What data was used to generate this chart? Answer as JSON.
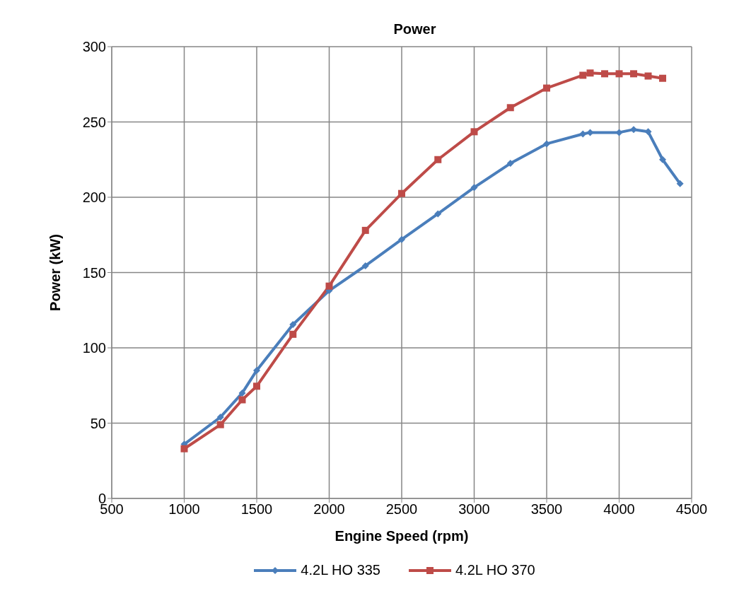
{
  "chart_data": {
    "type": "line",
    "title": "Power",
    "xlabel": "Engine Speed (rpm)",
    "ylabel": "Power (kW)",
    "xlim": [
      500,
      4500
    ],
    "xticks": [
      500,
      1000,
      1500,
      2000,
      2500,
      3000,
      3500,
      4000,
      4500
    ],
    "ylim": [
      0,
      300
    ],
    "yticks": [
      0,
      50,
      100,
      150,
      200,
      250,
      300
    ],
    "grid": true,
    "legend": "bottom",
    "line_style": "solid",
    "series": [
      {
        "name": "4.2L HO 335",
        "color": "#4a7ebb",
        "marker": "diamond",
        "x": [
          1000,
          1250,
          1400,
          1500,
          1750,
          2000,
          2250,
          2500,
          2750,
          3000,
          3250,
          3500,
          3750,
          3800,
          4000,
          4100,
          4200,
          4300,
          4420
        ],
        "values": [
          36,
          54,
          70,
          85,
          115.5,
          138,
          154.5,
          172,
          189,
          206.5,
          222.5,
          235.5,
          242,
          243,
          243,
          245,
          243.5,
          225,
          209
        ]
      },
      {
        "name": "4.2L HO 370",
        "color": "#be4b48",
        "marker": "square",
        "x": [
          1000,
          1250,
          1400,
          1500,
          1750,
          2000,
          2250,
          2500,
          2750,
          3000,
          3250,
          3500,
          3750,
          3800,
          3900,
          4000,
          4100,
          4200,
          4300
        ],
        "values": [
          33,
          49,
          65.5,
          74.5,
          109,
          141,
          178,
          202.5,
          225,
          243.5,
          259.5,
          272.5,
          281,
          282.5,
          282,
          282,
          282,
          280.5,
          279
        ]
      }
    ]
  }
}
